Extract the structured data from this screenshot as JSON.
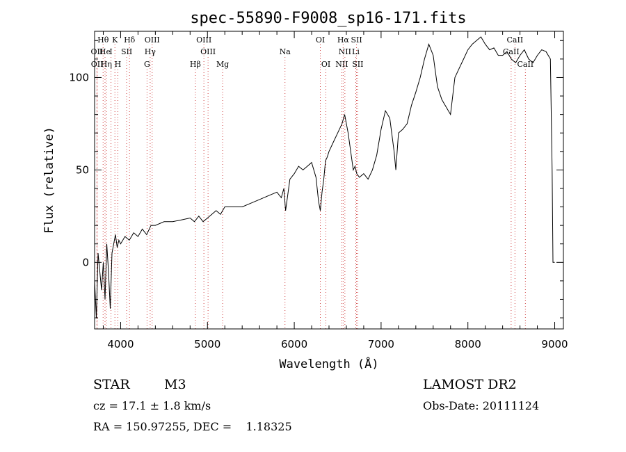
{
  "chart_data": {
    "type": "line",
    "title": "spec-55890-F9008_sp16-171.fits",
    "xlabel": "Wavelength (Å)",
    "ylabel": "Flux (relative)",
    "xlim": [
      3700,
      9100
    ],
    "ylim": [
      -36,
      125
    ],
    "xticks": [
      4000,
      5000,
      6000,
      7000,
      8000,
      9000
    ],
    "yticks": [
      0,
      50,
      100
    ],
    "series": [
      {
        "x": [
          3700,
          3720,
          3740,
          3760,
          3780,
          3800,
          3820,
          3840,
          3860,
          3880,
          3900,
          3920,
          3940,
          3960,
          3980,
          4000,
          4050,
          4100,
          4150,
          4200,
          4250,
          4300,
          4350,
          4400,
          4500,
          4600,
          4700,
          4800,
          4850,
          4900,
          4950,
          5000,
          5050,
          5100,
          5150,
          5200,
          5300,
          5400,
          5500,
          5600,
          5700,
          5800,
          5850,
          5880,
          5900,
          5950,
          6000,
          6050,
          6100,
          6150,
          6200,
          6250,
          6280,
          6300,
          6320,
          6340,
          6360,
          6380,
          6400,
          6450,
          6500,
          6550,
          6580,
          6620,
          6650,
          6680,
          6700,
          6720,
          6750,
          6800,
          6850,
          6900,
          6950,
          7000,
          7050,
          7100,
          7150,
          7170,
          7200,
          7250,
          7300,
          7350,
          7400,
          7450,
          7500,
          7550,
          7600,
          7620,
          7650,
          7700,
          7750,
          7800,
          7850,
          7900,
          7950,
          8000,
          8050,
          8100,
          8150,
          8200,
          8250,
          8300,
          8350,
          8400,
          8450,
          8500,
          8550,
          8600,
          8650,
          8700,
          8750,
          8800,
          8850,
          8900,
          8950,
          8970,
          8980,
          8990,
          9000
        ],
        "y": [
          -10,
          -30,
          5,
          -5,
          -15,
          0,
          -20,
          10,
          -5,
          -25,
          5,
          10,
          15,
          8,
          12,
          10,
          14,
          12,
          16,
          14,
          18,
          15,
          20,
          20,
          22,
          22,
          23,
          24,
          22,
          25,
          22,
          24,
          26,
          28,
          26,
          30,
          30,
          30,
          32,
          34,
          36,
          38,
          35,
          40,
          28,
          45,
          48,
          52,
          50,
          52,
          54,
          46,
          33,
          28,
          38,
          45,
          55,
          57,
          60,
          65,
          70,
          75,
          80,
          70,
          60,
          50,
          52,
          48,
          46,
          48,
          45,
          50,
          58,
          72,
          82,
          78,
          60,
          50,
          70,
          72,
          75,
          85,
          92,
          100,
          110,
          118,
          112,
          105,
          95,
          88,
          84,
          80,
          100,
          105,
          110,
          115,
          118,
          120,
          122,
          118,
          115,
          116,
          112,
          112,
          114,
          110,
          108,
          112,
          115,
          110,
          108,
          112,
          115,
          114,
          110,
          50,
          0,
          0,
          0
        ]
      }
    ],
    "line_markers": [
      {
        "name": "Hθ",
        "wl": 3798,
        "row": 1
      },
      {
        "name": "K",
        "wl": 3934,
        "row": 1
      },
      {
        "name": "Hδ",
        "wl": 4102,
        "row": 1
      },
      {
        "name": "OIII",
        "wl": 4363,
        "row": 1
      },
      {
        "name": "OIII",
        "wl": 4959,
        "row": 1
      },
      {
        "name": "OI",
        "wl": 6300,
        "row": 1
      },
      {
        "name": "Hα",
        "wl": 6563,
        "row": 1
      },
      {
        "name": "SII",
        "wl": 6717,
        "row": 1
      },
      {
        "name": "CaII",
        "wl": 8542,
        "row": 1
      },
      {
        "name": "OII",
        "wl": 3727,
        "row": 2
      },
      {
        "name": "He",
        "wl": 3820,
        "row": 2
      },
      {
        "name": "I",
        "wl": 3889,
        "row": 2
      },
      {
        "name": "SII",
        "wl": 4069,
        "row": 2
      },
      {
        "name": "Hγ",
        "wl": 4340,
        "row": 2
      },
      {
        "name": "OIII",
        "wl": 5007,
        "row": 2
      },
      {
        "name": "Na",
        "wl": 5893,
        "row": 2
      },
      {
        "name": "NII",
        "wl": 6583,
        "row": 2
      },
      {
        "name": "Li",
        "wl": 6708,
        "row": 2
      },
      {
        "name": "CaII",
        "wl": 8498,
        "row": 2
      },
      {
        "name": "OII",
        "wl": 3729,
        "row": 3
      },
      {
        "name": "Hη",
        "wl": 3835,
        "row": 3
      },
      {
        "name": "H",
        "wl": 3968,
        "row": 3
      },
      {
        "name": "G",
        "wl": 4304,
        "row": 3
      },
      {
        "name": "Hβ",
        "wl": 4861,
        "row": 3
      },
      {
        "name": "Mg",
        "wl": 5175,
        "row": 3
      },
      {
        "name": "OI",
        "wl": 6364,
        "row": 3
      },
      {
        "name": "NII",
        "wl": 6548,
        "row": 3
      },
      {
        "name": "SII",
        "wl": 6731,
        "row": 3
      },
      {
        "name": "CaII",
        "wl": 8662,
        "row": 3
      }
    ]
  },
  "footer": {
    "object_class": "STAR",
    "subclass": "M3",
    "survey": "LAMOST DR2",
    "cz": "cz = 17.1 ± 1.8 km/s",
    "obs_date": "Obs-Date: 20111124",
    "coords": "RA = 150.97255, DEC =    1.18325"
  }
}
